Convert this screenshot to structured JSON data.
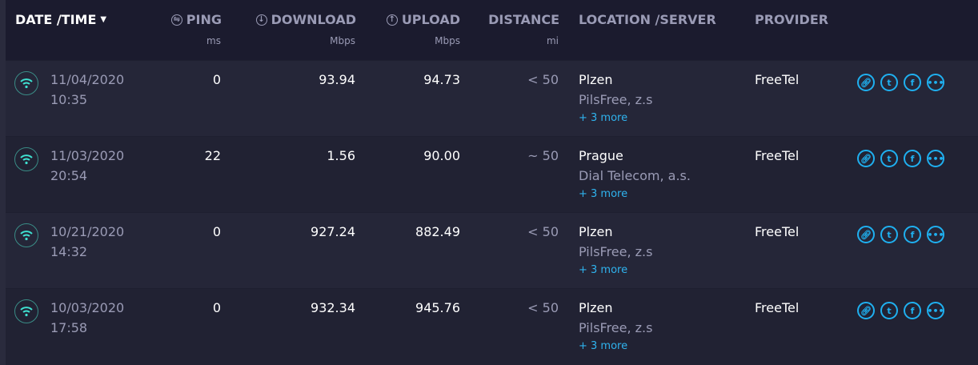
{
  "header": {
    "date_time": "DATE /TIME",
    "ping": "PING",
    "ping_unit": "ms",
    "download": "DOWNLOAD",
    "download_unit": "Mbps",
    "upload": "UPLOAD",
    "upload_unit": "Mbps",
    "distance": "DISTANCE",
    "distance_unit": "mi",
    "location": "LOCATION /SERVER",
    "provider": "PROVIDER"
  },
  "accent": "#1fb0f0",
  "rows": [
    {
      "date": "11/04/2020",
      "time": "10:35",
      "ping": "0",
      "download": "93.94",
      "upload": "94.73",
      "distance": "< 50",
      "location": "Plzen",
      "server": "PilsFree, z.s",
      "more": "+ 3 more",
      "provider": "FreeTel"
    },
    {
      "date": "11/03/2020",
      "time": "20:54",
      "ping": "22",
      "download": "1.56",
      "upload": "90.00",
      "distance": "~ 50",
      "location": "Prague",
      "server": "Dial Telecom, a.s.",
      "more": "+ 3 more",
      "provider": "FreeTel"
    },
    {
      "date": "10/21/2020",
      "time": "14:32",
      "ping": "0",
      "download": "927.24",
      "upload": "882.49",
      "distance": "< 50",
      "location": "Plzen",
      "server": "PilsFree, z.s",
      "more": "+ 3 more",
      "provider": "FreeTel"
    },
    {
      "date": "10/03/2020",
      "time": "17:58",
      "ping": "0",
      "download": "932.34",
      "upload": "945.76",
      "distance": "< 50",
      "location": "Plzen",
      "server": "PilsFree, z.s",
      "more": "+ 3 more",
      "provider": "FreeTel"
    }
  ]
}
